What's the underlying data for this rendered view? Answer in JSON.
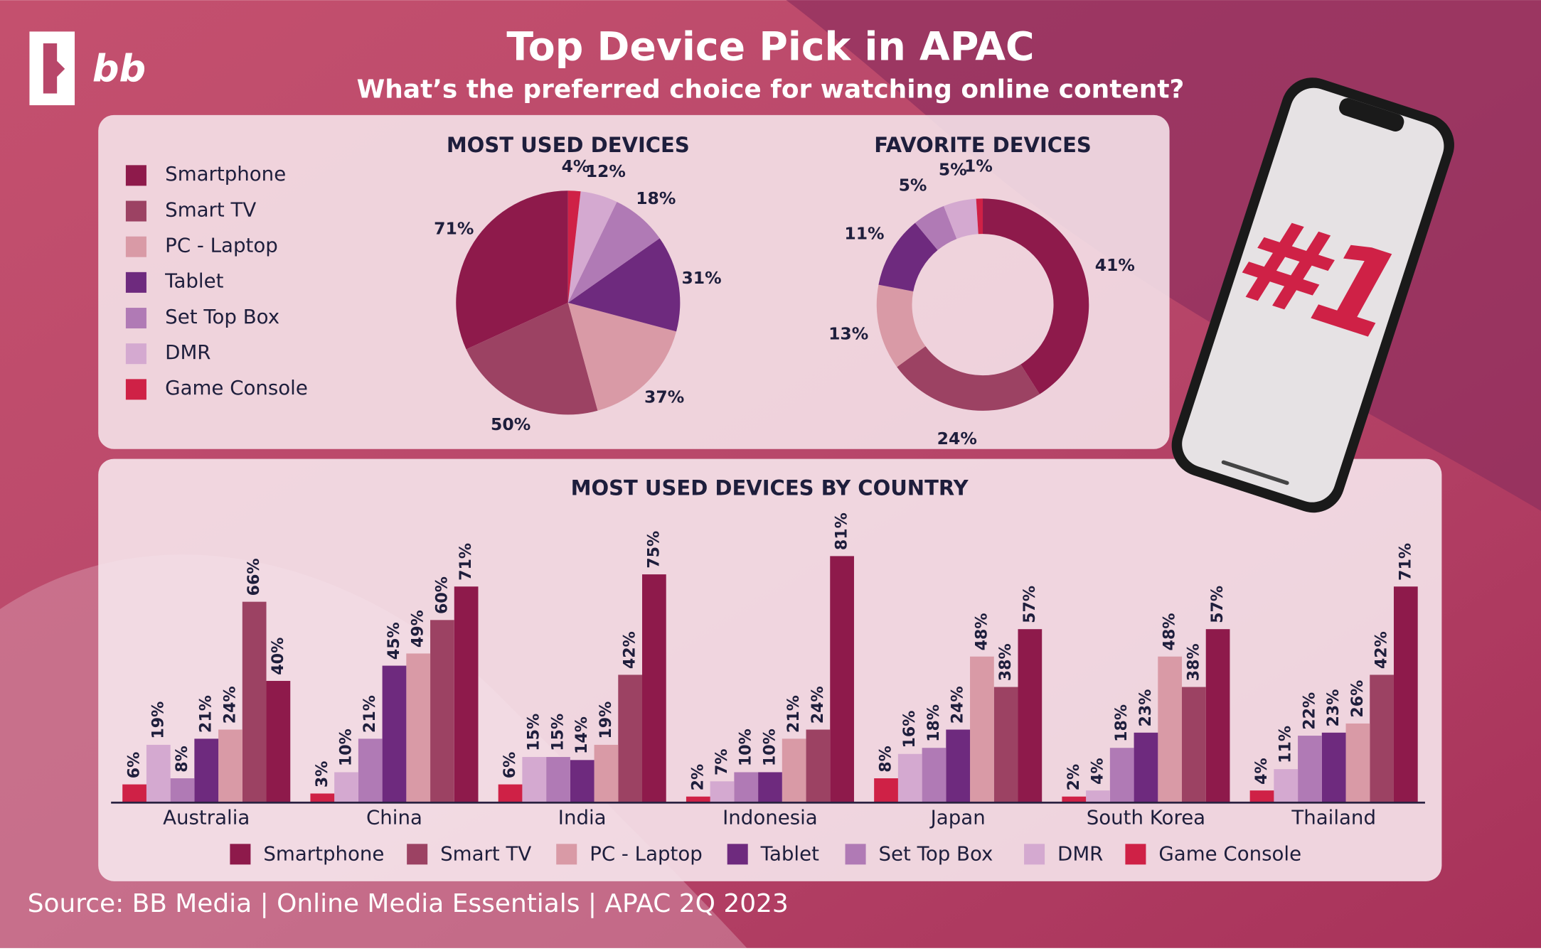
{
  "header": {
    "logo": "bb",
    "title": "Top Device Pick in APAC",
    "subtitle": "What’s the preferred choice for watching online content?"
  },
  "chart_data": [
    {
      "type": "pie",
      "title": "MOST USED DEVICES",
      "categories": [
        "Smartphone",
        "Smart TV",
        "PC - Laptop",
        "Tablet",
        "Set Top Box",
        "DMR",
        "Game Console"
      ],
      "colors": [
        "#8e1a4b",
        "#9c4263",
        "#d99aa6",
        "#6e2a7e",
        "#b07ab5",
        "#d4a9d0",
        "#cf2146"
      ],
      "values": [
        71,
        50,
        37,
        31,
        18,
        12,
        4
      ],
      "value_labels": [
        "71%",
        "50%",
        "37%",
        "31%",
        "18%",
        "12%",
        "4%"
      ]
    },
    {
      "type": "donut",
      "title": "FAVORITE DEVICES",
      "values": [
        41,
        24,
        13,
        11,
        5,
        5,
        1
      ],
      "value_labels": [
        "41%",
        "24%",
        "13%",
        "11%",
        "5%",
        "5%",
        "1%"
      ]
    },
    {
      "type": "bar",
      "title": "MOST USED DEVICES BY COUNTRY",
      "categories": [
        "Australia",
        "China",
        "India",
        "Indonesia",
        "Japan",
        "South Korea",
        "Thailand"
      ],
      "series": [
        {
          "name": "Smartphone",
          "color": "#8e1a4b",
          "values": [
            40,
            71,
            75,
            81,
            57,
            57,
            71
          ],
          "value_labels": [
            "40%",
            "71%",
            "75%",
            "81%",
            "57%",
            "57%",
            "71%"
          ]
        },
        {
          "name": "Smart TV",
          "color": "#9c4263",
          "values": [
            66,
            60,
            42,
            24,
            38,
            38,
            42
          ],
          "value_labels": [
            "66%",
            "60%",
            "42%",
            "24%",
            "38%",
            "38%",
            "42%"
          ]
        },
        {
          "name": "PC - Laptop",
          "color": "#d99aa6",
          "values": [
            24,
            49,
            19,
            21,
            48,
            48,
            26
          ],
          "value_labels": [
            "24%",
            "49%",
            "19%",
            "21%",
            "48%",
            "48%",
            "26%"
          ]
        },
        {
          "name": "Tablet",
          "color": "#6e2a7e",
          "values": [
            21,
            45,
            14,
            10,
            24,
            23,
            23
          ],
          "value_labels": [
            "21%",
            "45%",
            "14%",
            "10%",
            "24%",
            "23%",
            "23%"
          ]
        },
        {
          "name": "Set Top Box",
          "color": "#b07ab5",
          "values": [
            8,
            21,
            15,
            10,
            18,
            18,
            22
          ],
          "value_labels": [
            "8%",
            "21%",
            "15%",
            "10%",
            "18%",
            "18%",
            "22%"
          ]
        },
        {
          "name": "DMR",
          "color": "#d4a9d0",
          "values": [
            19,
            10,
            15,
            7,
            16,
            4,
            11
          ],
          "value_labels": [
            "19%",
            "10%",
            "15%",
            "7%",
            "16%",
            "4%",
            "11%"
          ]
        },
        {
          "name": "Game Console",
          "color": "#cf2146",
          "values": [
            6,
            3,
            6,
            2,
            8,
            2,
            4
          ],
          "value_labels": [
            "6%",
            "3%",
            "6%",
            "2%",
            "8%",
            "2%",
            "4%"
          ]
        }
      ]
    }
  ],
  "phone_label": "#1",
  "source": "Source: BB Media | Online Media Essentials | APAC 2Q 2023"
}
